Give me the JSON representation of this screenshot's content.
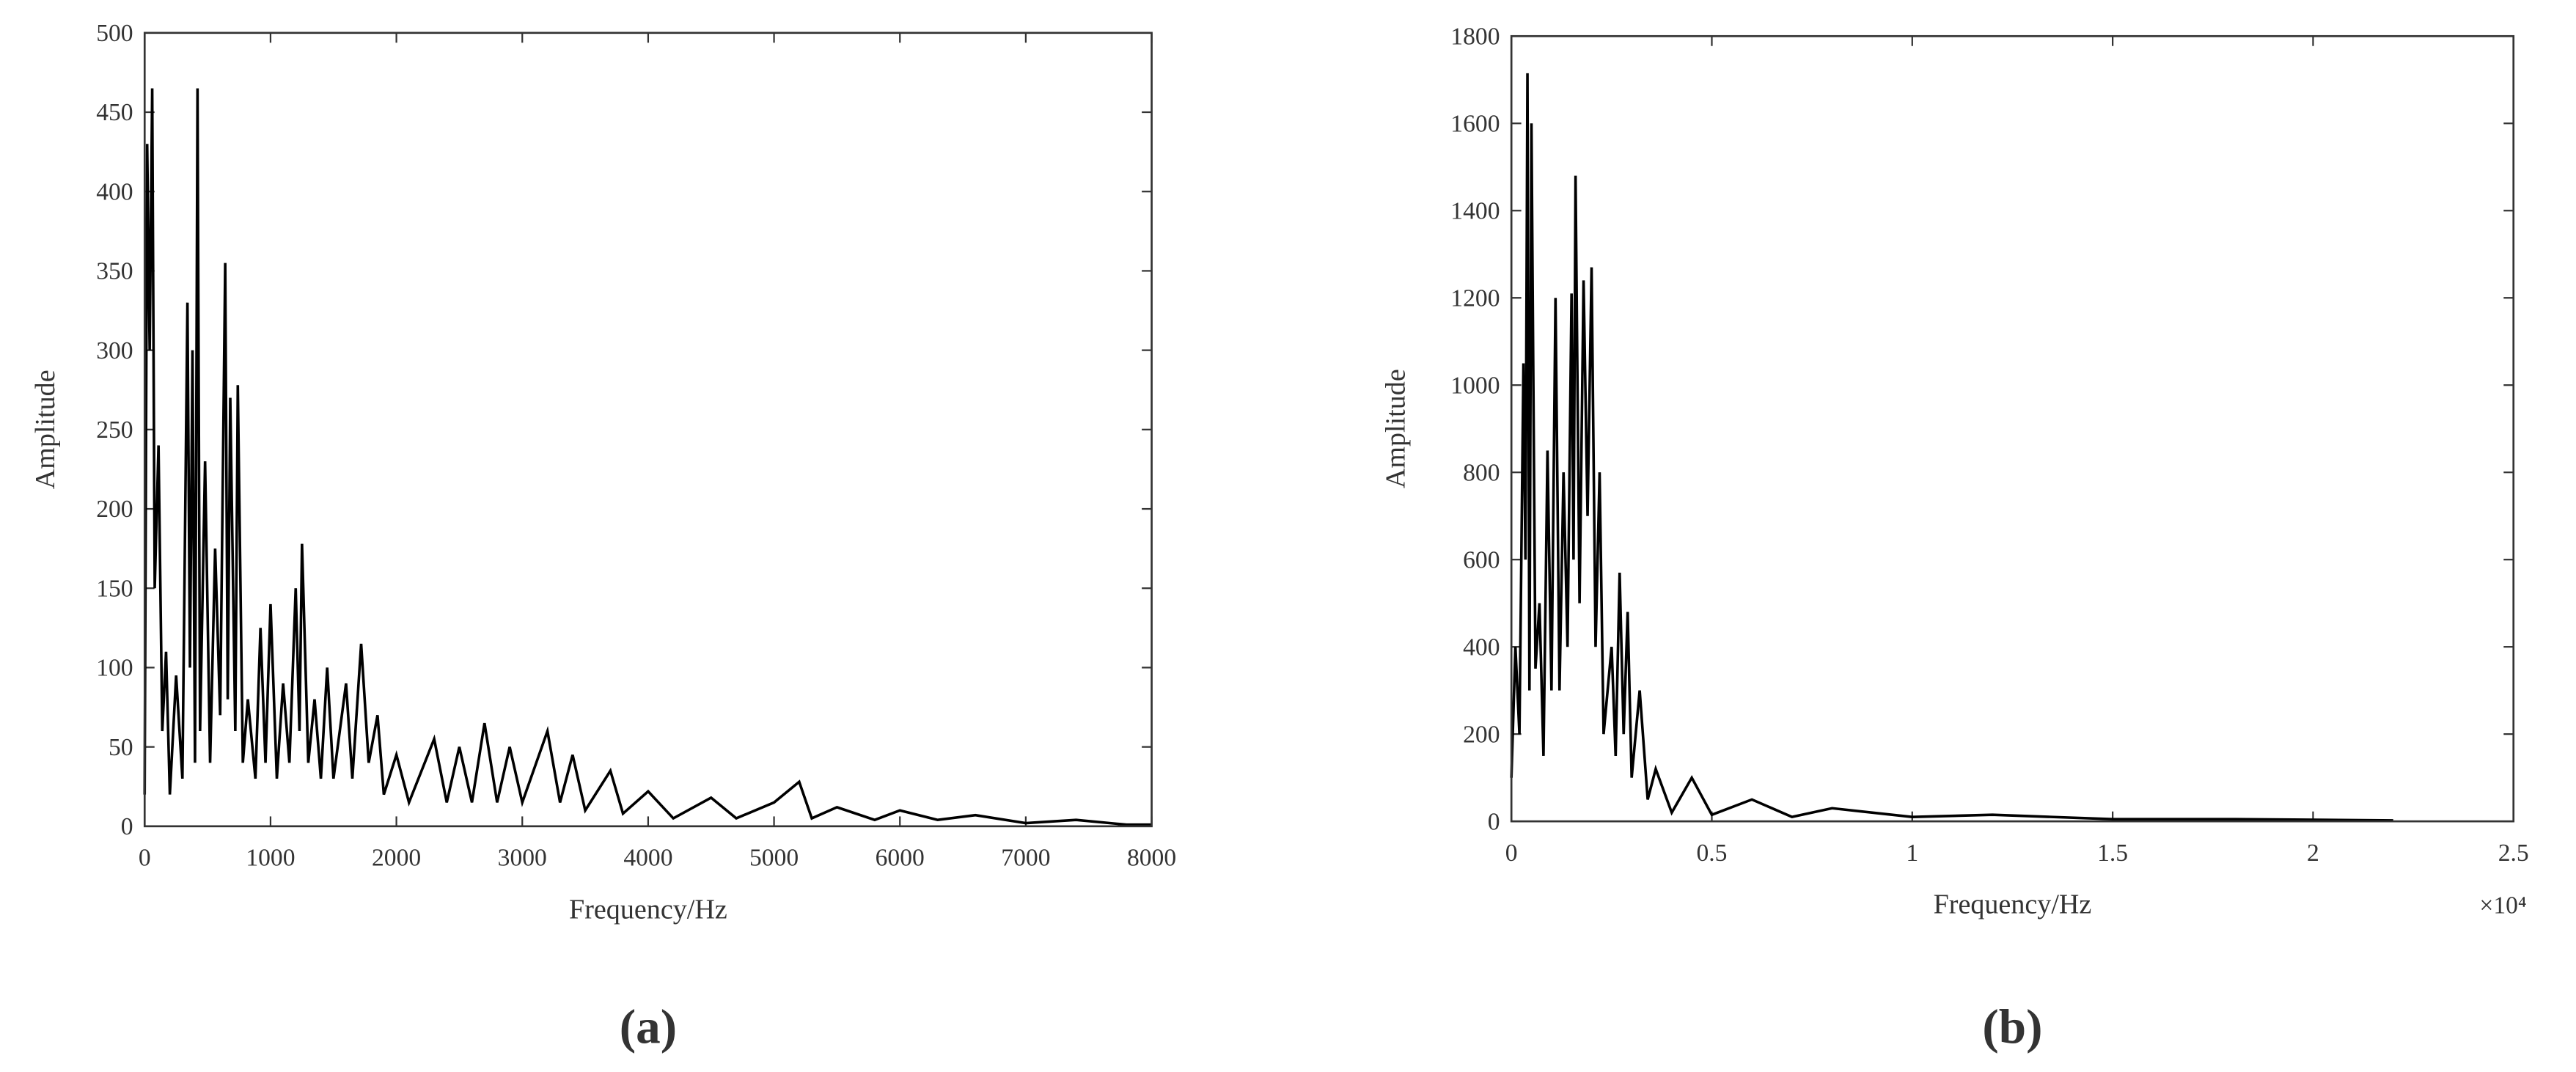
{
  "chart_data": [
    {
      "type": "line",
      "caption": "(a)",
      "x_label": "Frequency/Hz",
      "y_label": "Amplitude",
      "color": "#000000",
      "x": [
        0,
        20,
        40,
        60,
        80,
        110,
        140,
        170,
        200,
        250,
        300,
        340,
        360,
        380,
        400,
        420,
        440,
        480,
        520,
        560,
        600,
        640,
        660,
        680,
        720,
        740,
        780,
        820,
        880,
        920,
        960,
        1000,
        1050,
        1100,
        1150,
        1200,
        1230,
        1250,
        1300,
        1350,
        1400,
        1450,
        1500,
        1600,
        1650,
        1720,
        1780,
        1850,
        1900,
        2000,
        2100,
        2300,
        2400,
        2500,
        2600,
        2700,
        2800,
        2900,
        3000,
        3200,
        3300,
        3400,
        3500,
        3700,
        3800,
        4000,
        4200,
        4500,
        4700,
        5000,
        5200,
        5300,
        5500,
        5800,
        6000,
        6300,
        6600,
        7000,
        7400,
        7800,
        8000
      ],
      "values": [
        20,
        430,
        300,
        465,
        150,
        240,
        60,
        110,
        20,
        95,
        30,
        330,
        100,
        300,
        40,
        465,
        60,
        230,
        40,
        175,
        70,
        355,
        80,
        270,
        60,
        278,
        40,
        80,
        30,
        125,
        40,
        140,
        30,
        90,
        40,
        150,
        60,
        178,
        40,
        80,
        30,
        100,
        30,
        90,
        30,
        115,
        40,
        70,
        20,
        45,
        15,
        55,
        15,
        50,
        15,
        65,
        15,
        50,
        15,
        60,
        15,
        45,
        10,
        35,
        8,
        22,
        5,
        18,
        5,
        15,
        28,
        5,
        12,
        4,
        10,
        4,
        7,
        2,
        4,
        1,
        1
      ],
      "xlim": [
        0,
        8000
      ],
      "xticks": [
        0,
        1000,
        2000,
        3000,
        4000,
        5000,
        6000,
        7000,
        8000
      ],
      "ylim": [
        0,
        500
      ],
      "yticks": [
        0,
        50,
        100,
        150,
        200,
        250,
        300,
        350,
        400,
        450,
        500
      ]
    },
    {
      "type": "line",
      "caption": "(b)",
      "x_label": "Frequency/Hz",
      "y_label": "Amplitude",
      "x_annotation": "×10⁴",
      "color": "#000000",
      "x": [
        0,
        0.01,
        0.02,
        0.03,
        0.035,
        0.04,
        0.045,
        0.05,
        0.06,
        0.07,
        0.08,
        0.09,
        0.1,
        0.11,
        0.12,
        0.13,
        0.14,
        0.15,
        0.155,
        0.16,
        0.17,
        0.18,
        0.19,
        0.2,
        0.21,
        0.22,
        0.23,
        0.25,
        0.26,
        0.27,
        0.28,
        0.29,
        0.3,
        0.32,
        0.34,
        0.36,
        0.4,
        0.45,
        0.5,
        0.6,
        0.7,
        0.8,
        1.0,
        1.2,
        1.5,
        1.8,
        2.2
      ],
      "values": [
        100,
        400,
        200,
        1050,
        600,
        1715,
        300,
        1600,
        350,
        500,
        150,
        850,
        300,
        1200,
        300,
        800,
        400,
        1210,
        600,
        1480,
        500,
        1240,
        700,
        1270,
        400,
        800,
        200,
        400,
        150,
        570,
        200,
        480,
        100,
        300,
        50,
        120,
        20,
        100,
        15,
        50,
        10,
        30,
        10,
        15,
        5,
        5,
        2
      ],
      "xlim": [
        0,
        2.5
      ],
      "xticks": [
        0,
        0.5,
        1,
        1.5,
        2,
        2.5
      ],
      "ylim": [
        0,
        1800
      ],
      "yticks": [
        0,
        200,
        400,
        600,
        800,
        1000,
        1200,
        1400,
        1600,
        1800
      ]
    }
  ]
}
